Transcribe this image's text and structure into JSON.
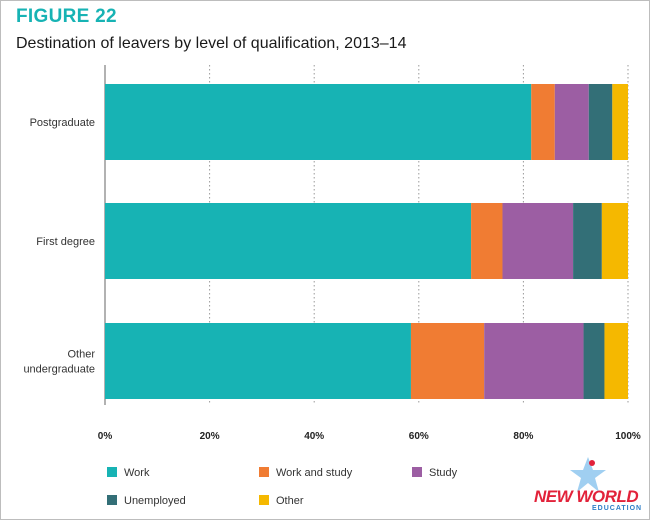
{
  "figure": {
    "label": "FIGURE 22",
    "title": "Destination of leavers by level of qualification, 2013–14"
  },
  "watermark": {
    "text": "NEW WORLD",
    "subtext": "EDUCATION"
  },
  "chart_data": {
    "type": "bar",
    "orientation": "horizontal",
    "stacked": true,
    "categories": [
      "Postgraduate",
      "First degree",
      "Other undergraduate"
    ],
    "category_display_lines": [
      [
        "Postgraduate"
      ],
      [
        "First degree"
      ],
      [
        "Other",
        "undergraduate"
      ]
    ],
    "series": [
      {
        "name": "Work",
        "color": "#17b3b4",
        "values": [
          81.5,
          70,
          58.5
        ]
      },
      {
        "name": "Work and study",
        "color": "#f07c33",
        "values": [
          4.5,
          6,
          14
        ]
      },
      {
        "name": "Study",
        "color": "#9c5ea3",
        "values": [
          6.5,
          13.5,
          19
        ]
      },
      {
        "name": "Unemployed",
        "color": "#336f77",
        "values": [
          4.5,
          5.5,
          4
        ]
      },
      {
        "name": "Other",
        "color": "#f5b800",
        "values": [
          3,
          5,
          4.5
        ]
      }
    ],
    "xlim": [
      0,
      100
    ],
    "xticks": [
      "0%",
      "20%",
      "40%",
      "60%",
      "80%",
      "100%"
    ],
    "grid": "vertical-dashed",
    "legend_position": "bottom",
    "xlabel": "",
    "ylabel": ""
  }
}
